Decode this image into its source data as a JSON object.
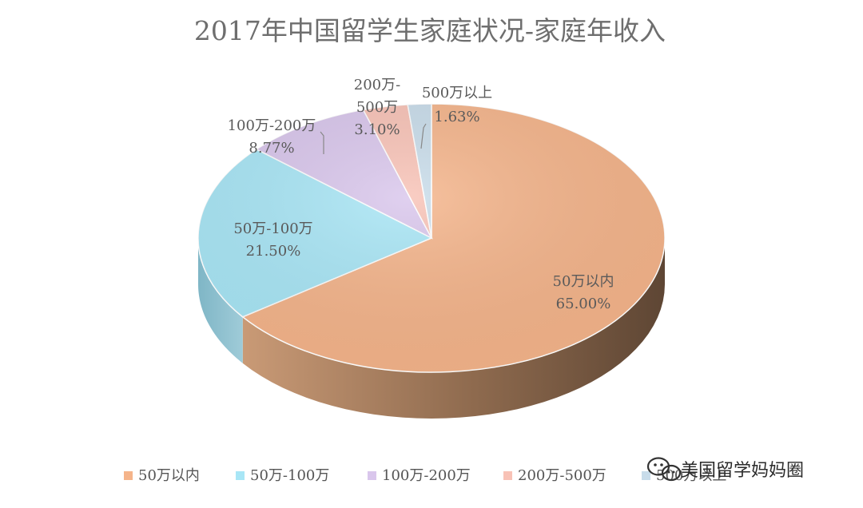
{
  "chart_data": {
    "type": "pie",
    "title": "2017年中国留学生家庭状况-家庭年收入",
    "categories": [
      "50万以内",
      "50万-100万",
      "100万-200万",
      "200万-500万",
      "500万以上"
    ],
    "values": [
      65.0,
      21.5,
      8.77,
      3.1,
      1.63
    ],
    "value_labels": [
      "65.00%",
      "21.50%",
      "8.77%",
      "3.10%",
      "1.63%"
    ],
    "colors": [
      "#f5b48a",
      "#a8e6f6",
      "#d9c6ec",
      "#f8c2b6",
      "#c8dcea"
    ],
    "legend_position": "bottom",
    "label_lines": [
      [
        "50万以内"
      ],
      [
        "50万-100万"
      ],
      [
        "100万-200万"
      ],
      [
        "200万-",
        "500万"
      ],
      [
        "500万以上"
      ]
    ]
  },
  "watermark": {
    "text": "美国留学妈妈圈",
    "icon": "wechat-icon"
  }
}
